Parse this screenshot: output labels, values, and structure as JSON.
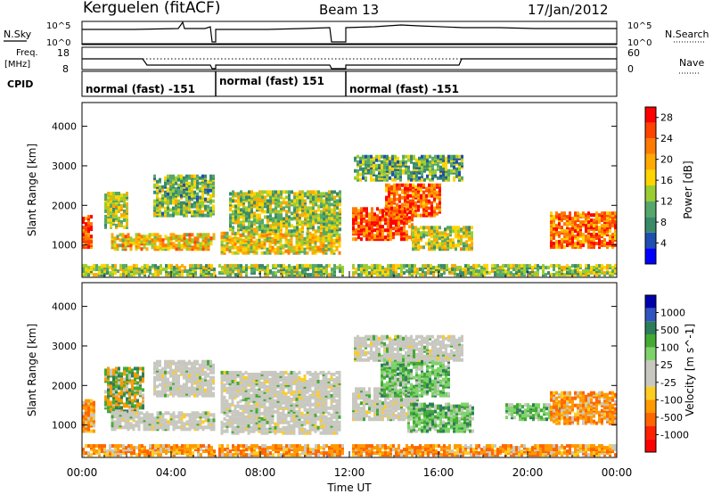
{
  "header": {
    "station": "Kerguelen (fitACF)",
    "beam": "Beam 13",
    "date": "17/Jan/2012"
  },
  "top_panels": {
    "nsky_label": "N.Sky",
    "nsearch_label": "N.Search",
    "nsky_ticks": [
      "10^5",
      "10^0"
    ],
    "nsearch_ticks": [
      "10^5",
      "10^0"
    ],
    "freq_label_line1": "Freq.",
    "freq_label_line2": "[MHz]",
    "freq_ticks": [
      "18",
      "8"
    ],
    "nave_label": "Nave",
    "nave_ticks": [
      "60",
      "0"
    ],
    "cpid_label": "CPID",
    "cpid_segments": [
      {
        "label": "normal (fast) -151",
        "start_hour": 0,
        "end_hour": 6
      },
      {
        "label": "normal (fast) 151",
        "start_hour": 6,
        "end_hour": 12
      },
      {
        "label": "normal (fast) -151",
        "start_hour": 12,
        "end_hour": 24
      }
    ]
  },
  "colors": {
    "power_scale": [
      "#0000ff",
      "#1f4fb0",
      "#3a8a6a",
      "#55a86a",
      "#9acd32",
      "#ffd400",
      "#ffaa00",
      "#ff7a00",
      "#ff4400",
      "#ff0000"
    ],
    "velocity_scale": [
      "#0000aa",
      "#3055c0",
      "#2e7d5a",
      "#44aa33",
      "#7dd36a",
      "#c8c8c0",
      "#c8c8c0",
      "#ffcc22",
      "#ff9900",
      "#ff6600",
      "#ff2200",
      "#ff0000"
    ],
    "ground_scatter": "#c8c8c0"
  },
  "chart_data": [
    {
      "type": "heatmap",
      "panel": "power",
      "ylabel": "Slant Range [km]",
      "xlabel": "",
      "x_ticks": [
        "00:00",
        "04:00",
        "08:00",
        "12:00",
        "16:00",
        "20:00",
        "00:00"
      ],
      "y_ticks": [
        "1000",
        "2000",
        "3000",
        "4000"
      ],
      "ylim": [
        180,
        4600
      ],
      "xlim_hours": [
        0,
        24
      ],
      "colorbar_label": "Power [dB]",
      "colorbar_ticks": [
        "4",
        "8",
        "12",
        "16",
        "20",
        "24",
        "28"
      ],
      "colorbar_range": [
        0,
        30
      ],
      "data_gaps_hours": [
        [
          5.95,
          6.1
        ],
        [
          11.65,
          12.05
        ]
      ],
      "echo_regions": [
        {
          "t0": 0.0,
          "t1": 0.4,
          "r0": 900,
          "r1": 1700,
          "level": 0.85
        },
        {
          "t0": 1.0,
          "t1": 2.0,
          "r0": 1400,
          "r1": 2300,
          "level": 0.5
        },
        {
          "t0": 1.3,
          "t1": 5.9,
          "r0": 850,
          "r1": 1250,
          "level": 0.6
        },
        {
          "t0": 3.2,
          "t1": 5.9,
          "r0": 1700,
          "r1": 2700,
          "level": 0.4
        },
        {
          "t0": 6.1,
          "t1": 11.6,
          "r0": 750,
          "r1": 1250,
          "level": 0.55
        },
        {
          "t0": 6.6,
          "t1": 11.6,
          "r0": 1300,
          "r1": 2300,
          "level": 0.45
        },
        {
          "t0": 12.0,
          "t1": 14.8,
          "r0": 1100,
          "r1": 1900,
          "level": 0.85
        },
        {
          "t0": 13.6,
          "t1": 16.0,
          "r0": 1700,
          "r1": 2500,
          "level": 0.8
        },
        {
          "t0": 14.8,
          "t1": 17.5,
          "r0": 850,
          "r1": 1400,
          "level": 0.5
        },
        {
          "t0": 12.2,
          "t1": 17.0,
          "r0": 2600,
          "r1": 3200,
          "level": 0.35
        },
        {
          "t0": 21.0,
          "t1": 24.0,
          "r0": 900,
          "r1": 1800,
          "level": 0.75
        },
        {
          "t0": 0.0,
          "t1": 24.0,
          "r0": 200,
          "r1": 450,
          "level": 0.45
        }
      ]
    },
    {
      "type": "heatmap",
      "panel": "velocity",
      "ylabel": "Slant Range [km]",
      "xlabel": "Time UT",
      "x_ticks": [
        "00:00",
        "04:00",
        "08:00",
        "12:00",
        "16:00",
        "20:00",
        "00:00"
      ],
      "y_ticks": [
        "1000",
        "2000",
        "3000",
        "4000"
      ],
      "ylim": [
        180,
        4600
      ],
      "xlim_hours": [
        0,
        24
      ],
      "colorbar_label": "Velocity [m s^-1]",
      "colorbar_ticks": [
        "1000",
        "500",
        "100",
        "25",
        "-25",
        "-100",
        "-500",
        "-1000"
      ],
      "data_gaps_hours": [
        [
          5.95,
          6.1
        ],
        [
          11.65,
          12.05
        ]
      ],
      "echo_regions": [
        {
          "t0": 0.0,
          "t1": 0.5,
          "r0": 800,
          "r1": 1600,
          "kind": "neg"
        },
        {
          "t0": 1.0,
          "t1": 2.8,
          "r0": 1300,
          "r1": 2400,
          "kind": "mixed"
        },
        {
          "t0": 1.3,
          "t1": 5.9,
          "r0": 850,
          "r1": 1300,
          "kind": "ground"
        },
        {
          "t0": 3.2,
          "t1": 5.9,
          "r0": 1700,
          "r1": 2600,
          "kind": "ground"
        },
        {
          "t0": 6.1,
          "t1": 11.6,
          "r0": 750,
          "r1": 2300,
          "kind": "ground"
        },
        {
          "t0": 12.0,
          "t1": 15.0,
          "r0": 1100,
          "r1": 1900,
          "kind": "ground"
        },
        {
          "t0": 13.4,
          "t1": 16.5,
          "r0": 1700,
          "r1": 2700,
          "kind": "pos"
        },
        {
          "t0": 14.6,
          "t1": 17.6,
          "r0": 800,
          "r1": 1500,
          "kind": "pos"
        },
        {
          "t0": 12.2,
          "t1": 17.0,
          "r0": 2600,
          "r1": 3200,
          "kind": "ground"
        },
        {
          "t0": 19.0,
          "t1": 21.5,
          "r0": 1100,
          "r1": 1500,
          "kind": "pos"
        },
        {
          "t0": 21.0,
          "t1": 24.0,
          "r0": 1000,
          "r1": 1800,
          "kind": "neg"
        },
        {
          "t0": 0.0,
          "t1": 24.0,
          "r0": 200,
          "r1": 450,
          "kind": "neg"
        }
      ]
    }
  ]
}
